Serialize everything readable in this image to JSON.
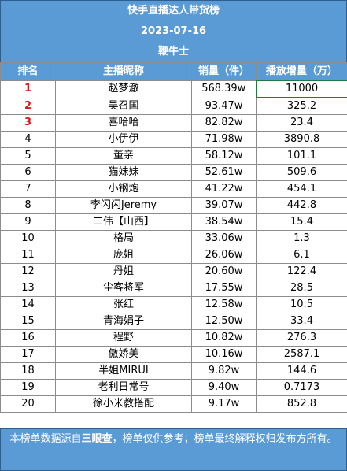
{
  "chart_data": {
    "type": "table",
    "title": "快手直播达人带货榜",
    "date": "2023-07-16",
    "subtitle": "鞭牛士",
    "columns": [
      "排名",
      "主播昵称",
      "销量（件）",
      "播放增量（万）"
    ],
    "rows": [
      {
        "rank": "1",
        "name": "赵梦澈",
        "sales": "568.39w",
        "views": "11000"
      },
      {
        "rank": "2",
        "name": "吴召国",
        "sales": "93.47w",
        "views": "325.2"
      },
      {
        "rank": "3",
        "name": "喜哈哈",
        "sales": "82.82w",
        "views": "23.4"
      },
      {
        "rank": "4",
        "name": "小伊伊",
        "sales": "71.98w",
        "views": "3890.8"
      },
      {
        "rank": "5",
        "name": "董亲",
        "sales": "58.12w",
        "views": "101.1"
      },
      {
        "rank": "6",
        "name": "猫妹妹",
        "sales": "52.61w",
        "views": "509.6"
      },
      {
        "rank": "7",
        "name": "小钢炮",
        "sales": "41.22w",
        "views": "454.1"
      },
      {
        "rank": "8",
        "name": "李闪闪Jeremy",
        "sales": "39.07w",
        "views": "442.8"
      },
      {
        "rank": "9",
        "name": "二伟【山西】",
        "sales": "38.54w",
        "views": "15.4"
      },
      {
        "rank": "10",
        "name": "格局",
        "sales": "33.06w",
        "views": "1.3"
      },
      {
        "rank": "11",
        "name": "庞姐",
        "sales": "26.06w",
        "views": "6.1"
      },
      {
        "rank": "12",
        "name": "丹姐",
        "sales": "20.60w",
        "views": "122.4"
      },
      {
        "rank": "13",
        "name": "尘客将军",
        "sales": "17.55w",
        "views": "28.5"
      },
      {
        "rank": "14",
        "name": "张红",
        "sales": "12.58w",
        "views": "10.5"
      },
      {
        "rank": "15",
        "name": "青海娟子",
        "sales": "12.50w",
        "views": "33.4"
      },
      {
        "rank": "16",
        "name": "程野",
        "sales": "10.82w",
        "views": "276.3"
      },
      {
        "rank": "17",
        "name": "傲娇美",
        "sales": "10.16w",
        "views": "2587.1"
      },
      {
        "rank": "18",
        "name": "半姐MIRUI",
        "sales": "9.82w",
        "views": "144.6"
      },
      {
        "rank": "19",
        "name": "老利日常号",
        "sales": "9.40w",
        "views": "0.7173"
      },
      {
        "rank": "20",
        "name": "徐小米教搭配",
        "sales": "9.17w",
        "views": "852.8"
      }
    ]
  },
  "footer": {
    "part1": "本榜单数据源自",
    "source": "三眼查",
    "part2": "，榜单仅供参考；榜单最终解释权归发布方所有。"
  },
  "colors": {
    "header_bg": "#5b9bd5",
    "top3_rank": "#e0151a",
    "highlight_border": "#1e7b3c"
  }
}
